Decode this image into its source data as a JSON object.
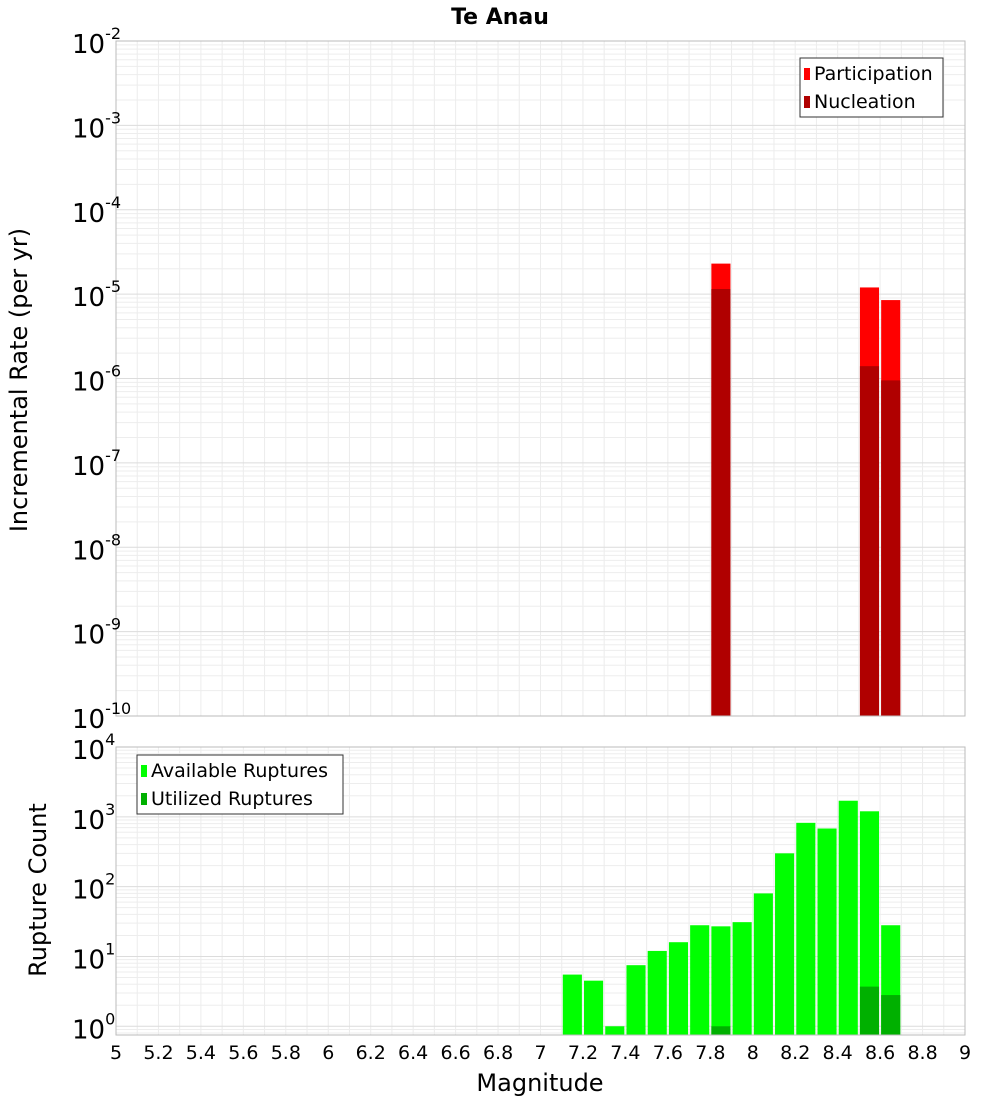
{
  "chart_data": [
    {
      "type": "bar",
      "title": "Te Anau",
      "xlabel": "",
      "ylabel": "Incremental Rate (per yr)",
      "yscale": "log",
      "ylim": [
        1e-10,
        0.01
      ],
      "xlim": [
        5,
        9
      ],
      "grid": true,
      "legend_position": "top-right",
      "ytick_labels": [
        "10^-10",
        "10^-9",
        "10^-8",
        "10^-7",
        "10^-6",
        "10^-5",
        "10^-4",
        "10^-3",
        "10^-2"
      ],
      "series": [
        {
          "name": "Participation",
          "color": "#ff0000",
          "x": [
            7.85,
            8.55,
            8.65
          ],
          "values": [
            2.3e-05,
            1.2e-05,
            8.5e-06
          ]
        },
        {
          "name": "Nucleation",
          "color": "#b00000",
          "x": [
            7.85,
            8.55,
            8.65
          ],
          "values": [
            1.15e-05,
            1.4e-06,
            9.5e-07
          ]
        }
      ]
    },
    {
      "type": "bar",
      "title": "",
      "xlabel": "Magnitude",
      "ylabel": "Rupture Count",
      "yscale": "log",
      "ylim": [
        0.75,
        10000
      ],
      "xlim": [
        5,
        9
      ],
      "grid": true,
      "legend_position": "top-left",
      "xtick_labels": [
        "5",
        "5.2",
        "5.4",
        "5.6",
        "5.8",
        "6",
        "6.2",
        "6.4",
        "6.6",
        "6.8",
        "7",
        "7.2",
        "7.4",
        "7.6",
        "7.8",
        "8",
        "8.2",
        "8.4",
        "8.6",
        "8.8",
        "9"
      ],
      "ytick_labels": [
        "10^0",
        "10^1",
        "10^2",
        "10^3",
        "10^4"
      ],
      "series": [
        {
          "name": "Available Ruptures",
          "color": "#00ff00",
          "x": [
            7.15,
            7.25,
            7.35,
            7.45,
            7.55,
            7.65,
            7.75,
            7.85,
            7.95,
            8.05,
            8.15,
            8.25,
            8.35,
            8.45,
            8.55,
            8.65
          ],
          "values": [
            5.5,
            4.5,
            1,
            7.5,
            12,
            16,
            28,
            27,
            31,
            80,
            300,
            820,
            680,
            1700,
            1200,
            28
          ]
        },
        {
          "name": "Utilized Ruptures",
          "color": "#00b000",
          "x": [
            7.85,
            8.55,
            8.65
          ],
          "values": [
            1,
            3.7,
            2.8
          ]
        }
      ]
    }
  ]
}
